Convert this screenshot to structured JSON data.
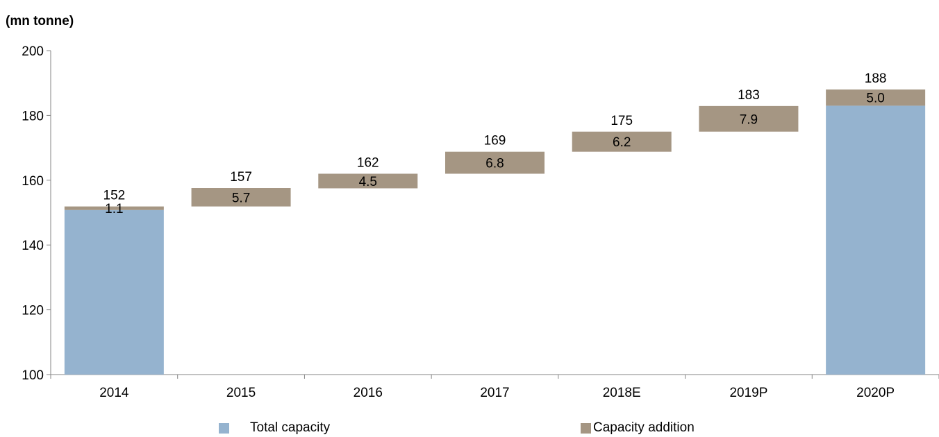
{
  "chart_data": {
    "type": "bar",
    "subtype": "waterfall",
    "ylabel": "(mn tonne)",
    "ylim": [
      100,
      200
    ],
    "yticks": [
      100,
      120,
      140,
      160,
      180,
      200
    ],
    "grid": false,
    "legend_position": "bottom",
    "categories": [
      "2014",
      "2015",
      "2016",
      "2017",
      "2018E",
      "2019P",
      "2020P"
    ],
    "series": [
      {
        "name": "Total capacity",
        "color": "#95B3CF",
        "values": [
          150.8,
          null,
          null,
          null,
          null,
          null,
          183.0
        ]
      },
      {
        "name": "Capacity addition",
        "color": "#A59683",
        "values": [
          1.1,
          5.7,
          4.5,
          6.8,
          6.2,
          7.9,
          5.0
        ]
      }
    ],
    "bases": [
      150.8,
      151.9,
      157.5,
      162.0,
      168.8,
      175.0,
      183.0
    ],
    "addition_labels": [
      "1.1",
      "5.7",
      "4.5",
      "6.8",
      "6.2",
      "7.9",
      "5.0"
    ],
    "total_labels": [
      "152",
      "157",
      "162",
      "169",
      "175",
      "183",
      "188"
    ]
  }
}
